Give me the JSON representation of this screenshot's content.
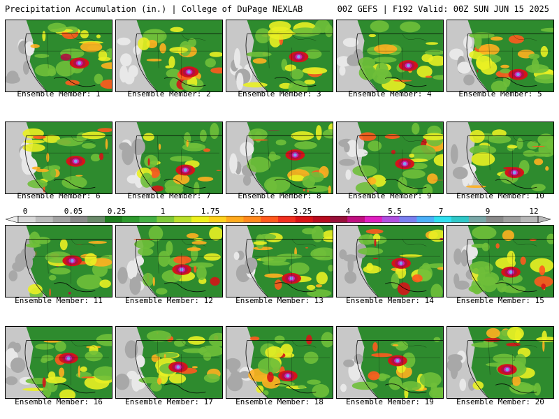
{
  "header": {
    "left": "Precipitation Accumulation (in.) | College of DuPage NEXLAB",
    "right": "00Z GEFS | F192 Valid: 00Z SUN JUN 15 2025"
  },
  "members": [
    {
      "label": "Ensemble Member: 1"
    },
    {
      "label": "Ensemble Member: 2"
    },
    {
      "label": "Ensemble Member: 3"
    },
    {
      "label": "Ensemble Member: 4"
    },
    {
      "label": "Ensemble Member: 5"
    },
    {
      "label": "Ensemble Member: 6"
    },
    {
      "label": "Ensemble Member: 7"
    },
    {
      "label": "Ensemble Member: 8"
    },
    {
      "label": "Ensemble Member: 9"
    },
    {
      "label": "Ensemble Member: 10"
    },
    {
      "label": "Ensemble Member: 11"
    },
    {
      "label": "Ensemble Member: 12"
    },
    {
      "label": "Ensemble Member: 13"
    },
    {
      "label": "Ensemble Member: 14"
    },
    {
      "label": "Ensemble Member: 15"
    },
    {
      "label": "Ensemble Member: 16"
    },
    {
      "label": "Ensemble Member: 17"
    },
    {
      "label": "Ensemble Member: 18"
    },
    {
      "label": "Ensemble Member: 19"
    },
    {
      "label": "Ensemble Member: 20"
    }
  ],
  "colorbar": {
    "labels": [
      "0",
      "0.05",
      "0.25",
      "1",
      "1.75",
      "2.5",
      "3.25",
      "4",
      "5.5",
      "7",
      "9",
      "12"
    ],
    "colors": [
      "#d8d8d8",
      "#bdbdbd",
      "#a3a3a3",
      "#8a8a8a",
      "#6a8a6a",
      "#1f7d1f",
      "#2e9a2e",
      "#45b045",
      "#7fc83a",
      "#b9df2c",
      "#eef01e",
      "#ffd21e",
      "#ffaa1e",
      "#ff8a1e",
      "#ff5a1e",
      "#f03020",
      "#d81418",
      "#b80c20",
      "#98103a",
      "#c01080",
      "#e020c0",
      "#b050e0",
      "#7a80f0",
      "#4cb0f8",
      "#30e0f0",
      "#30c8c8",
      "#7aa8a8",
      "#8a8a8a",
      "#a0a0a0",
      "#b8b8b8"
    ]
  },
  "map": {
    "land_green": "#2e8b2e",
    "precip_colors": [
      "#6fbf3a",
      "#e9ef24",
      "#ffb020",
      "#ff5a1e",
      "#d41418",
      "#b01040",
      "#d020b0",
      "#80a0f0"
    ],
    "dry_colors": [
      "#c8c8c8",
      "#a8a8a8",
      "#e8e8e8"
    ]
  }
}
